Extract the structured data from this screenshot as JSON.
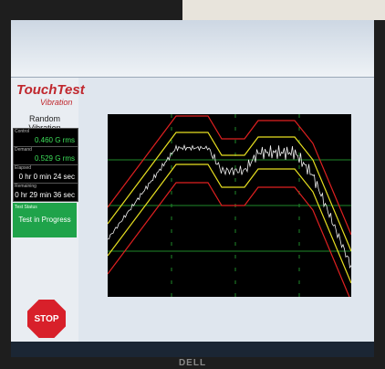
{
  "app": {
    "logo_title": "TouchTest",
    "logo_subtitle": "Vibration",
    "test_name": "Random Vibration"
  },
  "readouts": [
    {
      "label": "Control",
      "value": "0.460 G rms"
    },
    {
      "label": "Demand",
      "value": "0.529 G rms"
    },
    {
      "label": "Elapsed",
      "value": "0 hr 0 min 24 sec"
    },
    {
      "label": "Remaining",
      "value": "0 hr 29 min 36 sec"
    }
  ],
  "status": {
    "label": "Test Status",
    "value": "Test in Progress"
  },
  "stop_button": "STOP",
  "monitor_brand": "DELL"
}
